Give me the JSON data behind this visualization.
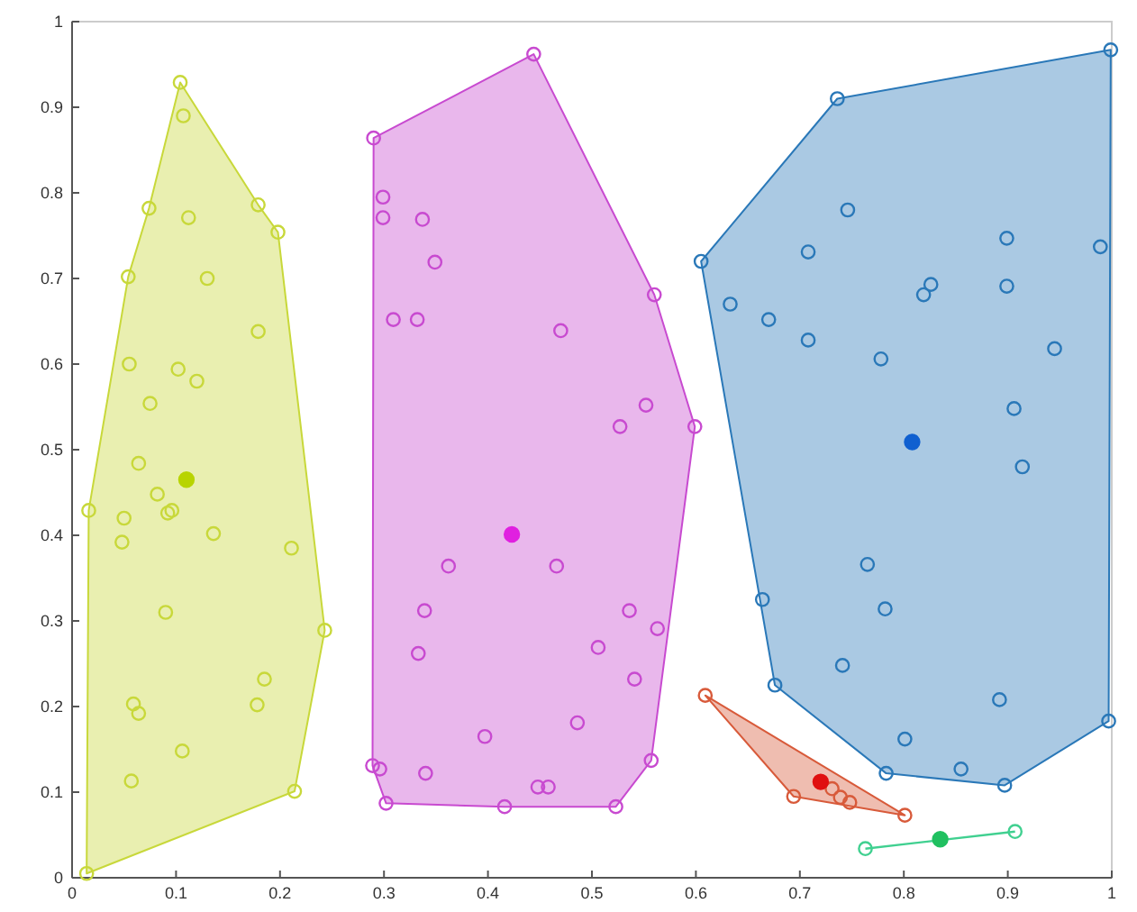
{
  "chart_data": {
    "type": "scatter",
    "xlim": [
      0,
      1
    ],
    "ylim": [
      0,
      1
    ],
    "xticks": [
      0,
      0.1,
      0.2,
      0.3,
      0.4,
      0.5,
      0.6,
      0.7,
      0.8,
      0.9,
      1
    ],
    "yticks": [
      0,
      0.1,
      0.2,
      0.3,
      0.4,
      0.5,
      0.6,
      0.7,
      0.8,
      0.9,
      1
    ],
    "grid": false,
    "marker": "circle",
    "series": [
      {
        "type": "area",
        "marker": "none",
        "color": "#c8d83a",
        "x": [
          0.104,
          0.179,
          0.198,
          0.243,
          0.214,
          0.014,
          0.016,
          0.054,
          0.074
        ],
        "values": [
          0.929,
          0.786,
          0.754,
          0.289,
          0.101,
          0.005,
          0.429,
          0.702,
          0.782
        ]
      },
      {
        "type": "area",
        "marker": "none",
        "color": "#c84ad0",
        "x": [
          0.444,
          0.56,
          0.599,
          0.557,
          0.523,
          0.416,
          0.302,
          0.289,
          0.29
        ],
        "values": [
          0.962,
          0.681,
          0.527,
          0.137,
          0.083,
          0.083,
          0.087,
          0.131,
          0.864
        ]
      },
      {
        "type": "area",
        "marker": "none",
        "color": "#2a78b8",
        "x": [
          0.999,
          0.997,
          0.897,
          0.783,
          0.676,
          0.605,
          0.736
        ],
        "values": [
          0.967,
          0.183,
          0.108,
          0.122,
          0.225,
          0.72,
          0.91
        ]
      },
      {
        "type": "area",
        "marker": "none",
        "color": "#d85a3a",
        "x": [
          0.609,
          0.801,
          0.694
        ],
        "values": [
          0.213,
          0.073,
          0.095
        ]
      },
      {
        "type": "line",
        "marker": "none",
        "color": "#40d090",
        "x": [
          0.763,
          0.907
        ],
        "values": [
          0.034,
          0.054
        ]
      },
      {
        "color": "#c8d83a",
        "x": [
          0.104,
          0.107,
          0.074,
          0.112,
          0.179,
          0.198,
          0.054,
          0.13,
          0.179,
          0.055,
          0.102,
          0.12,
          0.075,
          0.064,
          0.082,
          0.092,
          0.096,
          0.016,
          0.05,
          0.048,
          0.136,
          0.211,
          0.09,
          0.243,
          0.185,
          0.178,
          0.059,
          0.064,
          0.106,
          0.057,
          0.214,
          0.014
        ],
        "values": [
          0.929,
          0.89,
          0.782,
          0.771,
          0.786,
          0.754,
          0.702,
          0.7,
          0.638,
          0.6,
          0.594,
          0.58,
          0.554,
          0.484,
          0.448,
          0.426,
          0.429,
          0.429,
          0.42,
          0.392,
          0.402,
          0.385,
          0.31,
          0.289,
          0.232,
          0.202,
          0.203,
          0.192,
          0.148,
          0.113,
          0.101,
          0.005
        ]
      },
      {
        "color": "#b8d400",
        "x": [
          0.11
        ],
        "values": [
          0.465
        ]
      },
      {
        "color": "#c84ad0",
        "x": [
          0.29,
          0.444,
          0.299,
          0.299,
          0.337,
          0.349,
          0.309,
          0.332,
          0.47,
          0.56,
          0.552,
          0.527,
          0.599,
          0.362,
          0.466,
          0.339,
          0.536,
          0.563,
          0.333,
          0.506,
          0.541,
          0.486,
          0.397,
          0.557,
          0.289,
          0.296,
          0.34,
          0.302,
          0.416,
          0.448,
          0.458,
          0.523
        ],
        "values": [
          0.864,
          0.962,
          0.795,
          0.771,
          0.769,
          0.719,
          0.652,
          0.652,
          0.639,
          0.681,
          0.552,
          0.527,
          0.527,
          0.364,
          0.364,
          0.312,
          0.312,
          0.291,
          0.262,
          0.269,
          0.232,
          0.181,
          0.165,
          0.137,
          0.131,
          0.127,
          0.122,
          0.087,
          0.083,
          0.106,
          0.106,
          0.083
        ]
      },
      {
        "color": "#e020e0",
        "x": [
          0.423
        ],
        "values": [
          0.401
        ]
      },
      {
        "color": "#2a78b8",
        "x": [
          0.999,
          0.736,
          0.605,
          0.746,
          0.708,
          0.899,
          0.989,
          0.826,
          0.819,
          0.899,
          0.633,
          0.67,
          0.708,
          0.778,
          0.945,
          0.906,
          0.914,
          0.765,
          0.782,
          0.664,
          0.676,
          0.741,
          0.892,
          0.997,
          0.801,
          0.783,
          0.855,
          0.897
        ],
        "values": [
          0.967,
          0.91,
          0.72,
          0.78,
          0.731,
          0.747,
          0.737,
          0.693,
          0.681,
          0.691,
          0.67,
          0.652,
          0.628,
          0.606,
          0.618,
          0.548,
          0.48,
          0.366,
          0.314,
          0.325,
          0.225,
          0.248,
          0.208,
          0.183,
          0.162,
          0.122,
          0.127,
          0.108
        ]
      },
      {
        "color": "#1060d0",
        "x": [
          0.808
        ],
        "values": [
          0.509
        ]
      },
      {
        "color": "#d85a3a",
        "x": [
          0.609,
          0.694,
          0.731,
          0.739,
          0.748,
          0.801
        ],
        "values": [
          0.213,
          0.095,
          0.104,
          0.094,
          0.088,
          0.073
        ]
      },
      {
        "color": "#e01010",
        "x": [
          0.72
        ],
        "values": [
          0.112
        ]
      },
      {
        "color": "#40d090",
        "x": [
          0.763,
          0.907
        ],
        "values": [
          0.034,
          0.054
        ]
      },
      {
        "color": "#20c060",
        "x": [
          0.835
        ],
        "values": [
          0.045
        ]
      }
    ]
  }
}
